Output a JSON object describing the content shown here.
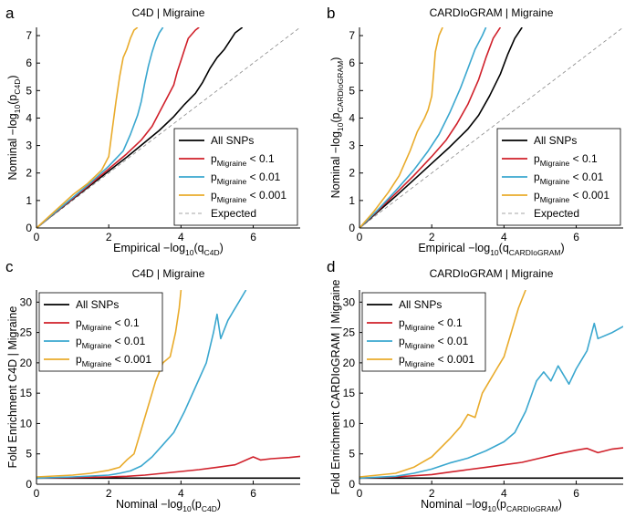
{
  "figure": {
    "panels": [
      "a",
      "b",
      "c",
      "d"
    ]
  },
  "colors": {
    "all_snps": "#000000",
    "p01": "#d0202a",
    "p001": "#3aa7cf",
    "p0001": "#e9ab2b",
    "expected": "#888888"
  },
  "chart_data": [
    {
      "id": "a",
      "type": "line",
      "panel_letter": "a",
      "title": "C4D | Migraine",
      "xlabel_main": "Empirical −log",
      "xlabel_sub_base": "10",
      "xlabel_paren": "(q",
      "xlabel_sub_var": "C4D",
      "xlabel_close": ")",
      "ylabel_main": "Nominal −log",
      "ylabel_sub_base": "10",
      "ylabel_paren": "(p",
      "ylabel_sub_var": "C4D",
      "ylabel_close": ")",
      "xlim": [
        0,
        7.3
      ],
      "ylim": [
        0,
        7.3
      ],
      "xticks": [
        0,
        2,
        4,
        6
      ],
      "yticks": [
        0,
        1,
        2,
        3,
        4,
        5,
        6,
        7
      ],
      "legend_position": "bottom-right",
      "legend": [
        {
          "key": "all",
          "label": "All SNPs",
          "sub": "",
          "suffix": "",
          "color_key": "all_snps",
          "dash": false
        },
        {
          "key": "p01",
          "label": "p",
          "sub": "Migraine",
          "suffix": " < 0.1",
          "color_key": "p01",
          "dash": false
        },
        {
          "key": "p001",
          "label": "p",
          "sub": "Migraine",
          "suffix": " < 0.01",
          "color_key": "p001",
          "dash": false
        },
        {
          "key": "p0001",
          "label": "p",
          "sub": "Migraine",
          "suffix": " < 0.001",
          "color_key": "p0001",
          "dash": false
        },
        {
          "key": "exp",
          "label": "Expected",
          "sub": "",
          "suffix": "",
          "color_key": "expected",
          "dash": true
        }
      ],
      "series": [
        {
          "name": "Expected",
          "color_key": "expected",
          "dash": true,
          "x": [
            0,
            7.3
          ],
          "y": [
            0,
            7.3
          ]
        },
        {
          "name": "All SNPs",
          "color_key": "all_snps",
          "dash": false,
          "x": [
            0,
            0.5,
            1.0,
            1.5,
            2.0,
            2.5,
            3.0,
            3.4,
            3.8,
            4.1,
            4.4,
            4.6,
            4.8,
            5.0,
            5.2,
            5.4,
            5.5,
            5.7
          ],
          "y": [
            0,
            0.53,
            1.05,
            1.56,
            2.07,
            2.58,
            3.12,
            3.55,
            4.05,
            4.5,
            4.9,
            5.3,
            5.8,
            6.2,
            6.5,
            6.9,
            7.1,
            7.3
          ]
        },
        {
          "name": "pMigraine < 0.1",
          "color_key": "p01",
          "dash": false,
          "x": [
            0,
            0.5,
            1.0,
            1.5,
            2.0,
            2.5,
            2.9,
            3.2,
            3.4,
            3.6,
            3.8,
            3.9,
            4.0,
            4.1,
            4.2,
            4.4,
            4.5
          ],
          "y": [
            0,
            0.54,
            1.07,
            1.6,
            2.15,
            2.7,
            3.2,
            3.7,
            4.2,
            4.7,
            5.2,
            5.7,
            6.1,
            6.5,
            6.9,
            7.2,
            7.3
          ]
        },
        {
          "name": "pMigraine < 0.01",
          "color_key": "p001",
          "dash": false,
          "x": [
            0,
            0.5,
            1.0,
            1.5,
            2.0,
            2.4,
            2.6,
            2.8,
            2.9,
            3.0,
            3.1,
            3.2,
            3.3,
            3.4,
            3.5
          ],
          "y": [
            0,
            0.55,
            1.1,
            1.65,
            2.25,
            2.8,
            3.4,
            4.1,
            4.6,
            5.3,
            5.9,
            6.4,
            6.8,
            7.1,
            7.3
          ]
        },
        {
          "name": "pMigraine < 0.001",
          "color_key": "p0001",
          "dash": false,
          "x": [
            0,
            0.5,
            1.0,
            1.4,
            1.8,
            2.0,
            2.1,
            2.2,
            2.3,
            2.4,
            2.5,
            2.6,
            2.7,
            2.8
          ],
          "y": [
            0,
            0.6,
            1.2,
            1.6,
            2.1,
            2.6,
            3.6,
            4.6,
            5.5,
            6.2,
            6.5,
            6.9,
            7.2,
            7.3
          ]
        }
      ]
    },
    {
      "id": "b",
      "type": "line",
      "panel_letter": "b",
      "title": "CARDIoGRAM | Migraine",
      "xlabel_main": "Empirical −log",
      "xlabel_sub_base": "10",
      "xlabel_paren": "(q",
      "xlabel_sub_var": "CARDIoGRAM",
      "xlabel_close": ")",
      "ylabel_main": "Nominal −log",
      "ylabel_sub_base": "10",
      "ylabel_paren": "(p",
      "ylabel_sub_var": "CARDIoGRAM",
      "ylabel_close": ")",
      "xlim": [
        0,
        7.3
      ],
      "ylim": [
        0,
        7.3
      ],
      "xticks": [
        0,
        2,
        4,
        6
      ],
      "yticks": [
        0,
        1,
        2,
        3,
        4,
        5,
        6,
        7
      ],
      "legend_position": "bottom-right",
      "legend": [
        {
          "key": "all",
          "label": "All SNPs",
          "sub": "",
          "suffix": "",
          "color_key": "all_snps",
          "dash": false
        },
        {
          "key": "p01",
          "label": "p",
          "sub": "Migraine",
          "suffix": " < 0.1",
          "color_key": "p01",
          "dash": false
        },
        {
          "key": "p001",
          "label": "p",
          "sub": "Migraine",
          "suffix": " < 0.01",
          "color_key": "p001",
          "dash": false
        },
        {
          "key": "p0001",
          "label": "p",
          "sub": "Migraine",
          "suffix": " < 0.001",
          "color_key": "p0001",
          "dash": false
        },
        {
          "key": "exp",
          "label": "Expected",
          "sub": "",
          "suffix": "",
          "color_key": "expected",
          "dash": true
        }
      ],
      "series": [
        {
          "name": "Expected",
          "color_key": "expected",
          "dash": true,
          "x": [
            0,
            7.3
          ],
          "y": [
            0,
            7.3
          ]
        },
        {
          "name": "All SNPs",
          "color_key": "all_snps",
          "dash": false,
          "x": [
            0,
            0.5,
            1.0,
            1.5,
            2.0,
            2.5,
            3.0,
            3.3,
            3.6,
            3.9,
            4.1,
            4.3,
            4.5
          ],
          "y": [
            0,
            0.58,
            1.15,
            1.75,
            2.35,
            2.95,
            3.6,
            4.1,
            4.8,
            5.6,
            6.3,
            6.9,
            7.3
          ]
        },
        {
          "name": "pMigraine < 0.1",
          "color_key": "p01",
          "dash": false,
          "x": [
            0,
            0.5,
            1.0,
            1.5,
            2.0,
            2.4,
            2.7,
            3.0,
            3.3,
            3.5,
            3.7,
            3.9
          ],
          "y": [
            0,
            0.62,
            1.25,
            1.9,
            2.6,
            3.2,
            3.8,
            4.5,
            5.4,
            6.2,
            6.9,
            7.3
          ]
        },
        {
          "name": "pMigraine < 0.01",
          "color_key": "p001",
          "dash": false,
          "x": [
            0,
            0.5,
            1.0,
            1.5,
            1.9,
            2.2,
            2.5,
            2.8,
            3.0,
            3.2,
            3.4,
            3.5
          ],
          "y": [
            0,
            0.65,
            1.35,
            2.1,
            2.8,
            3.4,
            4.2,
            5.1,
            5.8,
            6.5,
            7.0,
            7.3
          ]
        },
        {
          "name": "pMigraine < 0.001",
          "color_key": "p0001",
          "dash": false,
          "x": [
            0,
            0.4,
            0.8,
            1.1,
            1.4,
            1.6,
            1.8,
            1.9,
            2.0,
            2.05,
            2.1,
            2.2,
            2.3
          ],
          "y": [
            0,
            0.6,
            1.3,
            1.9,
            2.8,
            3.5,
            4.0,
            4.3,
            4.8,
            5.6,
            6.4,
            7.0,
            7.3
          ]
        }
      ]
    },
    {
      "id": "c",
      "type": "line",
      "panel_letter": "c",
      "title": "C4D | Migraine",
      "xlabel_main": "Nominal −log",
      "xlabel_sub_base": "10",
      "xlabel_paren": "(p",
      "xlabel_sub_var": "C4D",
      "xlabel_close": ")",
      "ylabel_text": "Fold Enrichment C4D | Migraine",
      "xlim": [
        0,
        7.3
      ],
      "ylim": [
        0,
        32
      ],
      "xticks": [
        0,
        2,
        4,
        6
      ],
      "yticks": [
        0,
        5,
        10,
        15,
        20,
        25,
        30
      ],
      "legend_position": "top-left",
      "legend": [
        {
          "key": "all",
          "label": "All SNPs",
          "sub": "",
          "suffix": "",
          "color_key": "all_snps",
          "dash": false
        },
        {
          "key": "p01",
          "label": "p",
          "sub": "Migraine",
          "suffix": " < 0.1",
          "color_key": "p01",
          "dash": false
        },
        {
          "key": "p001",
          "label": "p",
          "sub": "Migraine",
          "suffix": " < 0.01",
          "color_key": "p001",
          "dash": false
        },
        {
          "key": "p0001",
          "label": "p",
          "sub": "Migraine",
          "suffix": " < 0.001",
          "color_key": "p0001",
          "dash": false
        }
      ],
      "series": [
        {
          "name": "All SNPs",
          "color_key": "all_snps",
          "dash": false,
          "x": [
            0,
            7.3
          ],
          "y": [
            1,
            1
          ]
        },
        {
          "name": "pMigraine < 0.1",
          "color_key": "p01",
          "dash": false,
          "x": [
            0,
            1,
            2,
            2.5,
            3,
            3.5,
            4,
            4.5,
            5,
            5.5,
            6,
            6.2,
            6.5,
            7,
            7.3
          ],
          "y": [
            1,
            1.1,
            1.2,
            1.3,
            1.5,
            1.8,
            2.1,
            2.4,
            2.8,
            3.2,
            4.5,
            4.0,
            4.2,
            4.4,
            4.6
          ]
        },
        {
          "name": "pMigraine < 0.01",
          "color_key": "p001",
          "dash": false,
          "x": [
            0,
            1,
            2,
            2.3,
            2.6,
            2.9,
            3.2,
            3.5,
            3.8,
            4.1,
            4.4,
            4.7,
            4.9,
            5.0,
            5.1,
            5.3,
            5.6,
            5.8
          ],
          "y": [
            1,
            1.2,
            1.5,
            1.8,
            2.2,
            3.0,
            4.5,
            6.5,
            8.5,
            12,
            16,
            20,
            25,
            28,
            24,
            27,
            30,
            32
          ]
        },
        {
          "name": "pMigraine < 0.001",
          "color_key": "p0001",
          "dash": false,
          "x": [
            0,
            1,
            1.5,
            2.0,
            2.3,
            2.5,
            2.7,
            2.9,
            3.1,
            3.3,
            3.5,
            3.7,
            3.85,
            3.95,
            4.0
          ],
          "y": [
            1.2,
            1.5,
            1.8,
            2.3,
            2.8,
            4.0,
            5.0,
            9.0,
            13,
            17,
            20,
            21,
            25,
            29,
            32
          ]
        }
      ]
    },
    {
      "id": "d",
      "type": "line",
      "panel_letter": "d",
      "title": "CARDIoGRAM | Migraine",
      "xlabel_main": "Nominal −log",
      "xlabel_sub_base": "10",
      "xlabel_paren": "(p",
      "xlabel_sub_var": "CARDIoGRAM",
      "xlabel_close": ")",
      "ylabel_text": "Fold Enrichment CARDIoGRAM | Migraine",
      "xlim": [
        0,
        7.3
      ],
      "ylim": [
        0,
        32
      ],
      "xticks": [
        0,
        2,
        4,
        6
      ],
      "yticks": [
        0,
        5,
        10,
        15,
        20,
        25,
        30
      ],
      "legend_position": "top-left",
      "legend": [
        {
          "key": "all",
          "label": "All SNPs",
          "sub": "",
          "suffix": "",
          "color_key": "all_snps",
          "dash": false
        },
        {
          "key": "p01",
          "label": "p",
          "sub": "Migraine",
          "suffix": " < 0.1",
          "color_key": "p01",
          "dash": false
        },
        {
          "key": "p001",
          "label": "p",
          "sub": "Migraine",
          "suffix": " < 0.01",
          "color_key": "p001",
          "dash": false
        },
        {
          "key": "p0001",
          "label": "p",
          "sub": "Migraine",
          "suffix": " < 0.001",
          "color_key": "p0001",
          "dash": false
        }
      ],
      "series": [
        {
          "name": "All SNPs",
          "color_key": "all_snps",
          "dash": false,
          "x": [
            0,
            7.3
          ],
          "y": [
            1,
            1
          ]
        },
        {
          "name": "pMigraine < 0.1",
          "color_key": "p01",
          "dash": false,
          "x": [
            0,
            1,
            2,
            2.5,
            3,
            3.5,
            4,
            4.5,
            5,
            5.5,
            6,
            6.3,
            6.6,
            7,
            7.3
          ],
          "y": [
            1,
            1.2,
            1.6,
            2.0,
            2.4,
            2.8,
            3.2,
            3.6,
            4.3,
            5.0,
            5.6,
            5.9,
            5.2,
            5.8,
            6.0
          ]
        },
        {
          "name": "pMigraine < 0.01",
          "color_key": "p001",
          "dash": false,
          "x": [
            0,
            1,
            1.5,
            2,
            2.5,
            3,
            3.5,
            4,
            4.3,
            4.6,
            4.9,
            5.1,
            5.3,
            5.5,
            5.8,
            6.0,
            6.3,
            6.5,
            6.6,
            7.0,
            7.3
          ],
          "y": [
            1,
            1.3,
            1.8,
            2.5,
            3.5,
            4.3,
            5.5,
            7.0,
            8.5,
            12,
            17,
            18.5,
            17,
            19.5,
            16.5,
            19,
            22,
            26.5,
            24,
            25,
            26
          ]
        },
        {
          "name": "pMigraine < 0.001",
          "color_key": "p0001",
          "dash": false,
          "x": [
            0,
            1,
            1.5,
            2,
            2.5,
            2.8,
            3.0,
            3.2,
            3.3,
            3.4,
            3.6,
            3.8,
            4.0,
            4.2,
            4.4,
            4.6
          ],
          "y": [
            1.2,
            1.8,
            2.8,
            4.5,
            7.5,
            9.5,
            11.5,
            11.0,
            13,
            15,
            17,
            19,
            21,
            25,
            29,
            32
          ]
        }
      ]
    }
  ]
}
